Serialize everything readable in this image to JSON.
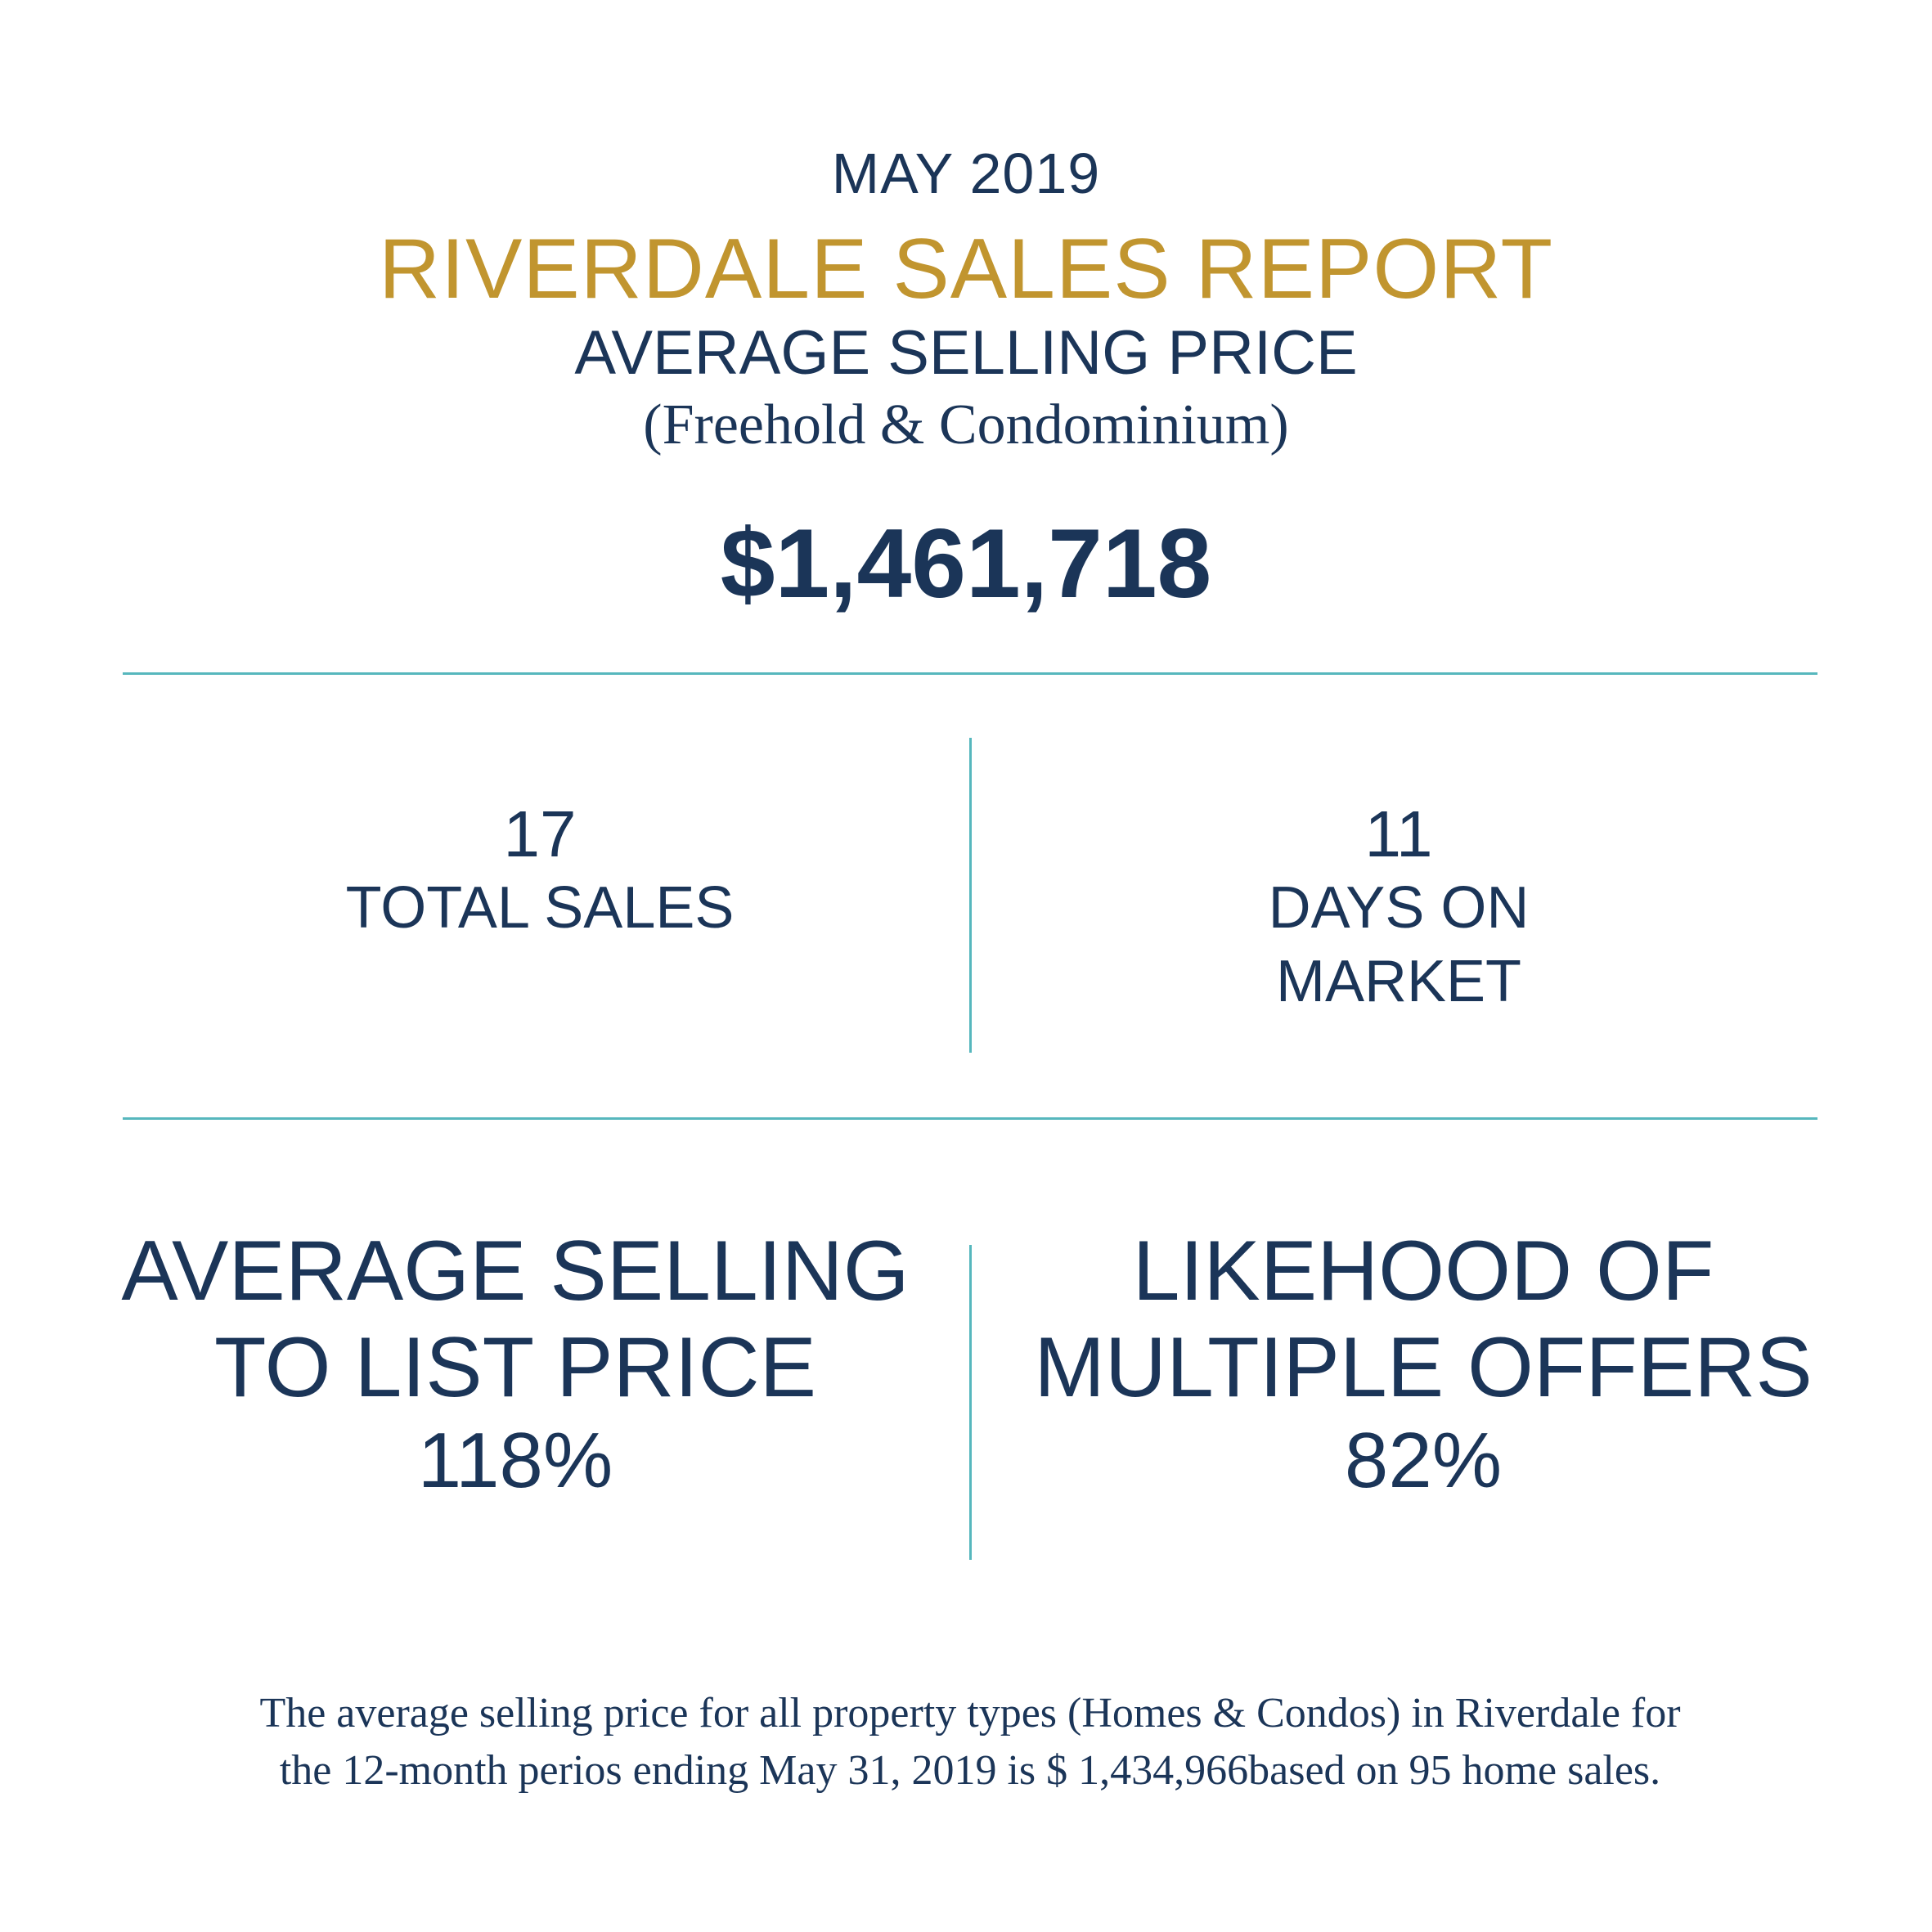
{
  "header": {
    "month": "MAY 2019",
    "title": "RIVERDALE SALES REPORT",
    "subtitle": "AVERAGE SELLING PRICE",
    "property_types": "(Freehold & Condominium)",
    "average_price": "$1,461,718"
  },
  "stats": {
    "total_sales": {
      "value": "17",
      "label": "TOTAL SALES"
    },
    "days_on_market": {
      "value": "11",
      "label_line1": "DAYS ON",
      "label_line2": "MARKET"
    }
  },
  "metrics": {
    "sell_to_list": {
      "line1": "AVERAGE SELLING",
      "line2": "TO LIST PRICE",
      "value": "118%"
    },
    "multiple_offers": {
      "line1": "LIKEHOOD OF",
      "line2": "MULTIPLE OFFERS",
      "value": "82%"
    }
  },
  "footnote": {
    "line1": "The average selling price for all property types (Homes & Condos) in Riverdale for",
    "line2": "the 12-month perios ending May 31, 2019 is $ 1,434,966based on 95 home sales."
  },
  "colors": {
    "navy": "#1b3558",
    "gold": "#c1952f",
    "teal_rule": "#56b7bd",
    "background": "#ffffff"
  }
}
